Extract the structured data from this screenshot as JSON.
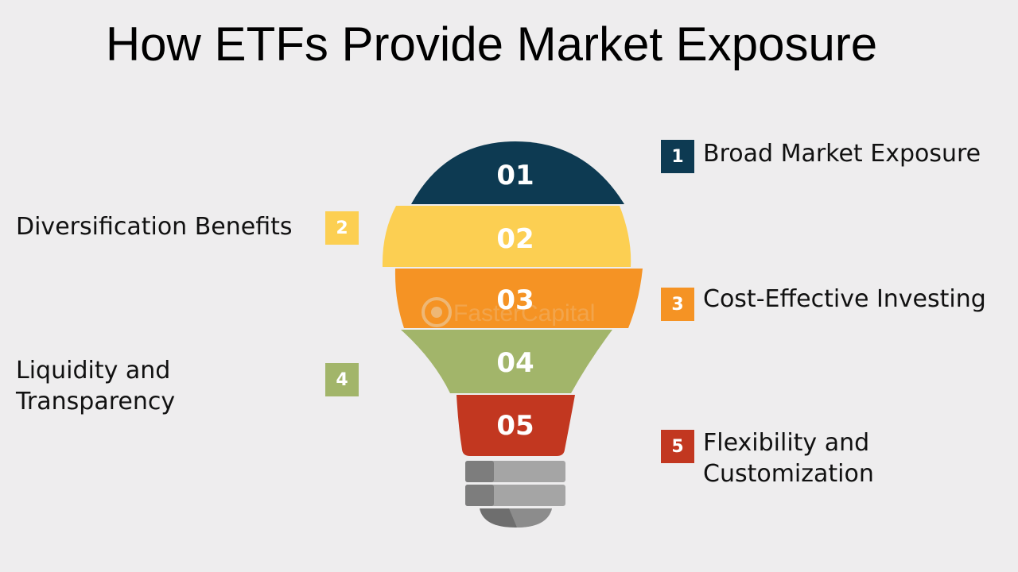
{
  "title": "How ETFs Provide Market Exposure",
  "colors": {
    "navy": "#0d3a52",
    "yellow": "#fccf52",
    "orange": "#f59324",
    "green": "#a2b56a",
    "red": "#c23720",
    "base_gray": "#8f8f8f"
  },
  "bulb_segments": [
    {
      "number": "01",
      "color": "#0d3a52"
    },
    {
      "number": "02",
      "color": "#fccf52"
    },
    {
      "number": "03",
      "color": "#f59324"
    },
    {
      "number": "04",
      "color": "#a2b56a"
    },
    {
      "number": "05",
      "color": "#c23720"
    }
  ],
  "items": [
    {
      "number": "1",
      "lines": [
        "Broad Market Exposure"
      ],
      "color": "#0d3a52"
    },
    {
      "number": "2",
      "lines": [
        "Diversification Benefits"
      ],
      "color": "#fccf52"
    },
    {
      "number": "3",
      "lines": [
        "Cost-Effective Investing"
      ],
      "color": "#f59324"
    },
    {
      "number": "4",
      "lines": [
        "Liquidity and",
        "Transparency"
      ],
      "color": "#a2b56a"
    },
    {
      "number": "5",
      "lines": [
        "Flexibility and",
        "Customization"
      ],
      "color": "#c23720"
    }
  ],
  "watermark": "FasterCapital"
}
